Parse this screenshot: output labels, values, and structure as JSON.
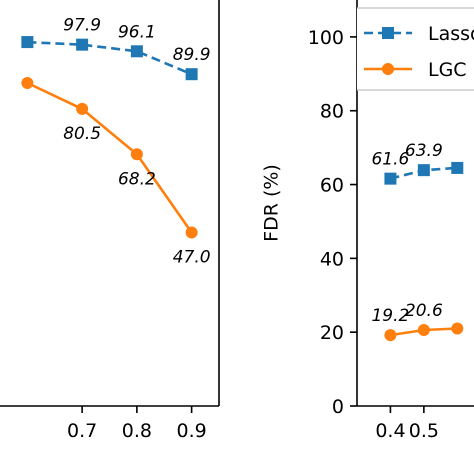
{
  "colors": {
    "lasso": "#1f77b4",
    "lgc": "#ff7f0e"
  },
  "chart_data": [
    {
      "type": "line",
      "title": "",
      "xlabel": "",
      "ylabel": "",
      "xlim": [
        0.55,
        0.95
      ],
      "ylim": [
        0,
        110
      ],
      "x_ticks": [
        "0.7",
        "0.8",
        "0.9"
      ],
      "x_tick_values": [
        0.7,
        0.8,
        0.9
      ],
      "series": [
        {
          "name": "Lasso",
          "x": [
            0.6,
            0.7,
            0.8,
            0.9
          ],
          "values": [
            98.6,
            97.9,
            96.1,
            89.9
          ],
          "labels": [
            "",
            "97.9",
            "96.1",
            "89.9"
          ],
          "marker": "square",
          "style": "dashed"
        },
        {
          "name": "LGC",
          "x": [
            0.6,
            0.7,
            0.8,
            0.9
          ],
          "values": [
            87.5,
            80.5,
            68.2,
            47.0
          ],
          "labels": [
            "",
            "80.5",
            "68.2",
            "47.0"
          ],
          "marker": "circle",
          "style": "solid"
        }
      ]
    },
    {
      "type": "line",
      "title": "",
      "xlabel": "",
      "ylabel": "FDR (%)",
      "xlim": [
        0.3,
        0.65
      ],
      "ylim": [
        0,
        110
      ],
      "x_ticks": [
        "0.4",
        "0.5"
      ],
      "x_tick_values": [
        0.4,
        0.5
      ],
      "y_ticks": [
        "0",
        "20",
        "40",
        "60",
        "80",
        "100"
      ],
      "y_tick_values": [
        0,
        20,
        40,
        60,
        80,
        100
      ],
      "legend": {
        "placement": "top-right",
        "entries": [
          "Lasso",
          "LGC"
        ]
      },
      "series": [
        {
          "name": "Lasso",
          "x": [
            0.4,
            0.5,
            0.6
          ],
          "values": [
            61.6,
            63.9,
            64.5
          ],
          "labels": [
            "61.6",
            "63.9",
            ""
          ],
          "marker": "square",
          "style": "dashed"
        },
        {
          "name": "LGC",
          "x": [
            0.4,
            0.5,
            0.6
          ],
          "values": [
            19.2,
            20.6,
            21.0
          ],
          "labels": [
            "19.2",
            "20.6",
            ""
          ],
          "marker": "circle",
          "style": "solid"
        }
      ]
    }
  ]
}
